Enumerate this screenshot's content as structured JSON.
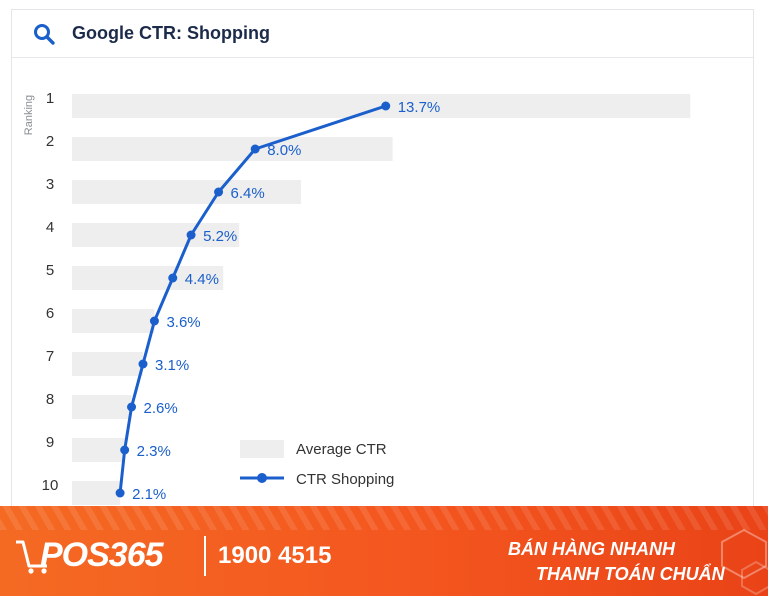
{
  "header": {
    "title": "Google CTR: Shopping",
    "icon": "search-icon"
  },
  "chart_data": {
    "type": "bar",
    "title": "Google CTR: Shopping",
    "ylabel": "Ranking",
    "xlabel": "",
    "orientation": "horizontal",
    "categories": [
      "1",
      "2",
      "3",
      "4",
      "5",
      "6",
      "7",
      "8",
      "9",
      "10"
    ],
    "series": [
      {
        "name": "Average CTR",
        "mark": "bar",
        "color": "#eeeeee",
        "values": [
          27.0,
          14.0,
          10.0,
          7.3,
          6.6,
          3.6,
          3.1,
          2.6,
          2.3,
          2.1
        ]
      },
      {
        "name": "CTR Shopping",
        "mark": "line",
        "color": "#1a5fcc",
        "values": [
          13.7,
          8.0,
          6.4,
          5.2,
          4.4,
          3.6,
          3.1,
          2.6,
          2.3,
          2.1
        ],
        "labels": [
          "13.7%",
          "8.0%",
          "6.4%",
          "5.2%",
          "4.4%",
          "3.6%",
          "3.1%",
          "2.6%",
          "2.3%",
          "2.1%"
        ]
      }
    ],
    "grid": false,
    "legend": "bottom-center"
  },
  "footer": {
    "brand": "POS365",
    "hotline": "1900 4515",
    "slogan_line1": "BÁN HÀNG NHANH",
    "slogan_line2": "THANH TOÁN CHUẨN",
    "colors": {
      "background": "#f4561f",
      "text": "#ffffff"
    }
  }
}
